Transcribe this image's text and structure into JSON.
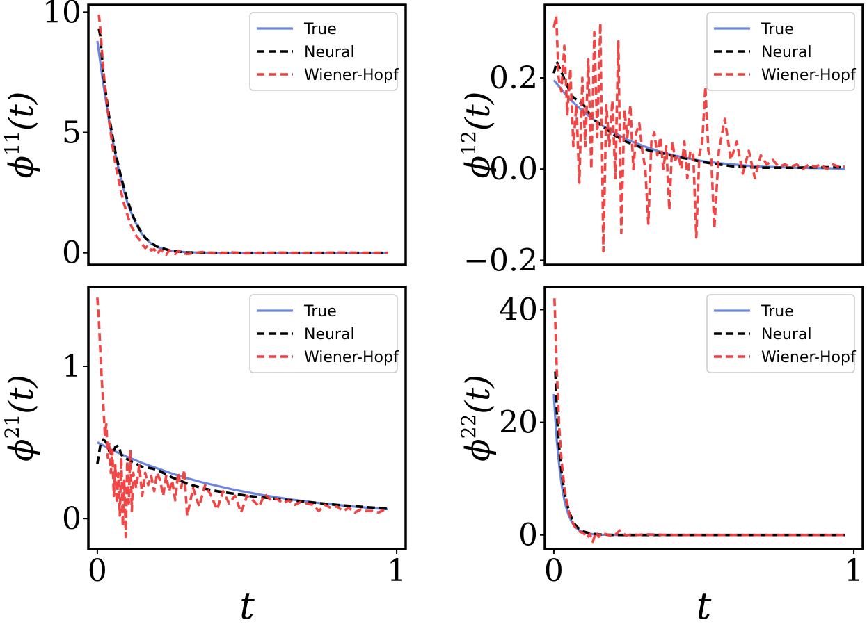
{
  "chart_data": [
    {
      "type": "line",
      "ylabel": {
        "base": "ϕ",
        "sup": "11",
        "arg": "(t)"
      },
      "xlabel": "",
      "xlim": [
        -0.03,
        1.03
      ],
      "ylim": [
        -0.5,
        10.3
      ],
      "xticks": [],
      "xtick_labels": [],
      "yticks": [
        0,
        5,
        10
      ],
      "ytick_labels": [
        "0",
        "5",
        "10"
      ],
      "legend_position": "top-right",
      "legend": [
        "True",
        "Neural",
        "Wiener-Hopf"
      ],
      "colors": {
        "True": "#6a86e0",
        "Neural": "#000000",
        "Wiener-Hopf": "#f03c3c"
      },
      "series": [
        {
          "name": "True",
          "x": [
            0.0,
            0.02,
            0.04,
            0.06,
            0.08,
            0.1,
            0.12,
            0.14,
            0.16,
            0.18,
            0.2,
            0.25,
            0.3,
            0.4,
            0.5,
            0.6,
            0.8,
            0.97
          ],
          "y": [
            8.8,
            7.0,
            5.4,
            4.1,
            3.0,
            2.1,
            1.45,
            0.95,
            0.6,
            0.38,
            0.24,
            0.08,
            0.02,
            0.0,
            0.0,
            0.0,
            0.0,
            0.0
          ]
        },
        {
          "name": "Neural",
          "x": [
            0.005,
            0.01,
            0.02,
            0.04,
            0.06,
            0.08,
            0.1,
            0.12,
            0.14,
            0.16,
            0.18,
            0.2,
            0.25,
            0.3,
            0.4,
            0.5,
            0.6,
            0.8,
            0.97
          ],
          "y": [
            9.3,
            9.0,
            7.4,
            5.6,
            4.2,
            3.1,
            2.2,
            1.5,
            1.0,
            0.62,
            0.4,
            0.25,
            0.07,
            0.02,
            0.0,
            0.0,
            0.0,
            0.0,
            0.0
          ]
        },
        {
          "name": "Wiener-Hopf",
          "x": [
            0.005,
            0.01,
            0.02,
            0.03,
            0.04,
            0.05,
            0.06,
            0.07,
            0.08,
            0.09,
            0.1,
            0.11,
            0.12,
            0.13,
            0.14,
            0.15,
            0.16,
            0.17,
            0.18,
            0.19,
            0.2,
            0.21,
            0.22,
            0.23,
            0.24,
            0.25,
            0.26,
            0.27,
            0.28,
            0.3,
            0.35,
            0.4,
            0.45,
            0.5,
            0.6,
            0.7,
            0.8,
            0.9,
            0.97
          ],
          "y": [
            9.9,
            9.3,
            7.6,
            6.4,
            5.4,
            4.5,
            3.7,
            3.1,
            2.5,
            2.0,
            1.6,
            1.2,
            0.95,
            0.7,
            0.55,
            0.35,
            0.2,
            0.3,
            0.1,
            0.15,
            -0.05,
            0.12,
            0.05,
            -0.08,
            0.1,
            0.02,
            -0.05,
            0.08,
            0.0,
            -0.05,
            0.03,
            -0.03,
            0.02,
            -0.02,
            0.01,
            -0.01,
            0.01,
            0.0,
            0.0
          ]
        }
      ]
    },
    {
      "type": "line",
      "ylabel": {
        "base": "ϕ",
        "sup": "12",
        "arg": "(t)"
      },
      "xlabel": "",
      "xlim": [
        -0.03,
        1.03
      ],
      "ylim": [
        -0.21,
        0.36
      ],
      "xticks": [],
      "xtick_labels": [],
      "yticks": [
        -0.2,
        0.0,
        0.2
      ],
      "ytick_labels": [
        "−0.2",
        "0.0",
        "0.2"
      ],
      "legend_position": "top-right",
      "legend": [
        "True",
        "Neural",
        "Wiener-Hopf"
      ],
      "colors": {
        "True": "#6a86e0",
        "Neural": "#000000",
        "Wiener-Hopf": "#f03c3c"
      },
      "series": [
        {
          "name": "True",
          "x": [
            0.0,
            0.05,
            0.1,
            0.15,
            0.2,
            0.25,
            0.3,
            0.35,
            0.4,
            0.45,
            0.5,
            0.55,
            0.6,
            0.65,
            0.7,
            0.8,
            0.9,
            0.97
          ],
          "y": [
            0.195,
            0.155,
            0.125,
            0.1,
            0.08,
            0.063,
            0.05,
            0.039,
            0.03,
            0.023,
            0.017,
            0.013,
            0.01,
            0.007,
            0.005,
            0.003,
            0.002,
            0.001
          ]
        },
        {
          "name": "Neural",
          "x": [
            0.0,
            0.01,
            0.02,
            0.04,
            0.06,
            0.08,
            0.1,
            0.12,
            0.14,
            0.16,
            0.18,
            0.2,
            0.24,
            0.28,
            0.32,
            0.36,
            0.4,
            0.45,
            0.5,
            0.55,
            0.6,
            0.65,
            0.7,
            0.8,
            0.9,
            0.97
          ],
          "y": [
            0.21,
            0.235,
            0.22,
            0.19,
            0.16,
            0.15,
            0.14,
            0.12,
            0.105,
            0.095,
            0.085,
            0.075,
            0.06,
            0.05,
            0.04,
            0.035,
            0.028,
            0.022,
            0.015,
            0.01,
            0.006,
            0.004,
            0.003,
            0.003,
            0.004,
            0.004
          ]
        },
        {
          "name": "Wiener-Hopf",
          "x": [
            0.0,
            0.008,
            0.016,
            0.025,
            0.035,
            0.045,
            0.055,
            0.065,
            0.075,
            0.085,
            0.095,
            0.105,
            0.115,
            0.125,
            0.135,
            0.145,
            0.155,
            0.165,
            0.175,
            0.185,
            0.195,
            0.205,
            0.215,
            0.225,
            0.235,
            0.245,
            0.255,
            0.265,
            0.275,
            0.285,
            0.295,
            0.305,
            0.315,
            0.325,
            0.335,
            0.345,
            0.355,
            0.365,
            0.375,
            0.385,
            0.395,
            0.405,
            0.415,
            0.425,
            0.435,
            0.445,
            0.455,
            0.465,
            0.475,
            0.485,
            0.495,
            0.505,
            0.515,
            0.525,
            0.535,
            0.55,
            0.57,
            0.59,
            0.61,
            0.63,
            0.65,
            0.67,
            0.69,
            0.71,
            0.73,
            0.75,
            0.77,
            0.79,
            0.81,
            0.83,
            0.85,
            0.87,
            0.89,
            0.91,
            0.93,
            0.95,
            0.97
          ],
          "y": [
            0.31,
            0.335,
            0.2,
            0.17,
            0.27,
            0.12,
            0.22,
            0.05,
            0.14,
            -0.03,
            0.2,
            0.05,
            0.24,
            0.0,
            0.3,
            0.07,
            0.32,
            -0.18,
            0.14,
            0.05,
            0.15,
            -0.02,
            0.28,
            -0.14,
            0.13,
            0.07,
            0.14,
            0.0,
            0.08,
            0.1,
            0.04,
            0.0,
            -0.12,
            0.06,
            0.08,
            0.03,
            0.07,
            0.0,
            0.05,
            -0.09,
            0.06,
            0.02,
            0.03,
            0.0,
            0.06,
            -0.02,
            0.04,
            0.03,
            -0.15,
            0.03,
            0.06,
            0.18,
            0.04,
            0.02,
            -0.13,
            0.04,
            0.11,
            0.02,
            0.06,
            -0.01,
            0.04,
            -0.02,
            0.03,
            0.01,
            0.02,
            0.005,
            0.01,
            0.005,
            0.01,
            0.0,
            0.01,
            0.005,
            0.01,
            0.0,
            0.01,
            0.005,
            0.005
          ]
        }
      ]
    },
    {
      "type": "line",
      "ylabel": {
        "base": "ϕ",
        "sup": "21",
        "arg": "(t)"
      },
      "xlabel": "t",
      "xlim": [
        -0.03,
        1.03
      ],
      "ylim": [
        -0.2,
        1.52
      ],
      "xticks": [
        0,
        1
      ],
      "xtick_labels": [
        "0",
        "1"
      ],
      "yticks": [
        0,
        1
      ],
      "ytick_labels": [
        "0",
        "1"
      ],
      "legend_position": "top-right",
      "legend": [
        "True",
        "Neural",
        "Wiener-Hopf"
      ],
      "colors": {
        "True": "#6a86e0",
        "Neural": "#000000",
        "Wiener-Hopf": "#f03c3c"
      },
      "series": [
        {
          "name": "True",
          "x": [
            0.0,
            0.05,
            0.1,
            0.15,
            0.2,
            0.25,
            0.3,
            0.35,
            0.4,
            0.45,
            0.5,
            0.55,
            0.6,
            0.65,
            0.7,
            0.75,
            0.8,
            0.85,
            0.9,
            0.97
          ],
          "y": [
            0.5,
            0.45,
            0.405,
            0.365,
            0.33,
            0.295,
            0.265,
            0.238,
            0.215,
            0.193,
            0.173,
            0.155,
            0.14,
            0.125,
            0.112,
            0.1,
            0.09,
            0.08,
            0.072,
            0.062
          ]
        },
        {
          "name": "Neural",
          "x": [
            0.0,
            0.01,
            0.02,
            0.03,
            0.04,
            0.05,
            0.06,
            0.07,
            0.08,
            0.09,
            0.1,
            0.12,
            0.15,
            0.18,
            0.2,
            0.22,
            0.25,
            0.3,
            0.35,
            0.4,
            0.5,
            0.6,
            0.7,
            0.8,
            0.9,
            0.97
          ],
          "y": [
            0.36,
            0.48,
            0.52,
            0.5,
            0.44,
            0.42,
            0.47,
            0.48,
            0.42,
            0.4,
            0.39,
            0.37,
            0.34,
            0.33,
            0.32,
            0.3,
            0.27,
            0.23,
            0.2,
            0.18,
            0.15,
            0.13,
            0.11,
            0.09,
            0.075,
            0.065
          ]
        },
        {
          "name": "Wiener-Hopf",
          "x": [
            0.0,
            0.005,
            0.01,
            0.015,
            0.02,
            0.025,
            0.03,
            0.035,
            0.04,
            0.045,
            0.05,
            0.055,
            0.06,
            0.065,
            0.07,
            0.075,
            0.08,
            0.085,
            0.09,
            0.095,
            0.1,
            0.105,
            0.11,
            0.115,
            0.12,
            0.13,
            0.14,
            0.15,
            0.16,
            0.17,
            0.18,
            0.19,
            0.2,
            0.21,
            0.22,
            0.23,
            0.24,
            0.25,
            0.26,
            0.27,
            0.28,
            0.29,
            0.3,
            0.32,
            0.34,
            0.36,
            0.38,
            0.4,
            0.42,
            0.44,
            0.46,
            0.48,
            0.5,
            0.52,
            0.54,
            0.56,
            0.58,
            0.6,
            0.62,
            0.64,
            0.66,
            0.68,
            0.7,
            0.72,
            0.74,
            0.76,
            0.78,
            0.8,
            0.82,
            0.84,
            0.86,
            0.88,
            0.9,
            0.92,
            0.94,
            0.97
          ],
          "y": [
            1.45,
            1.3,
            1.1,
            0.9,
            0.75,
            0.55,
            0.62,
            0.4,
            0.5,
            0.3,
            0.45,
            0.15,
            0.35,
            0.1,
            0.3,
            0.02,
            0.4,
            -0.05,
            0.25,
            -0.12,
            0.38,
            0.1,
            0.45,
            0.05,
            0.3,
            0.2,
            0.35,
            0.15,
            0.3,
            0.22,
            0.28,
            0.18,
            0.3,
            0.25,
            0.15,
            0.28,
            0.18,
            0.25,
            0.12,
            0.3,
            0.2,
            0.32,
            0.02,
            0.2,
            0.08,
            0.22,
            0.15,
            0.06,
            0.18,
            0.1,
            0.15,
            0.04,
            0.15,
            0.12,
            0.08,
            0.16,
            0.12,
            0.13,
            0.1,
            0.12,
            0.09,
            0.11,
            0.1,
            0.09,
            0.05,
            0.09,
            0.07,
            0.08,
            0.05,
            0.07,
            0.04,
            0.06,
            0.05,
            0.05,
            0.04,
            0.07
          ]
        }
      ]
    },
    {
      "type": "line",
      "ylabel": {
        "base": "ϕ",
        "sup": "22",
        "arg": "(t)"
      },
      "xlabel": "t",
      "xlim": [
        -0.03,
        1.03
      ],
      "ylim": [
        -2.5,
        44.0
      ],
      "xticks": [
        0,
        1
      ],
      "xtick_labels": [
        "0",
        "1"
      ],
      "yticks": [
        0,
        20,
        40
      ],
      "ytick_labels": [
        "0",
        "20",
        "40"
      ],
      "legend_position": "top-right",
      "legend": [
        "True",
        "Neural",
        "Wiener-Hopf"
      ],
      "colors": {
        "True": "#6a86e0",
        "Neural": "#000000",
        "Wiener-Hopf": "#f03c3c"
      },
      "series": [
        {
          "name": "True",
          "x": [
            0.0,
            0.005,
            0.01,
            0.015,
            0.02,
            0.025,
            0.03,
            0.035,
            0.04,
            0.05,
            0.06,
            0.07,
            0.08,
            0.09,
            0.1,
            0.12,
            0.15,
            0.2,
            0.3,
            0.5,
            0.7,
            0.97
          ],
          "y": [
            25.0,
            20.5,
            16.8,
            13.8,
            11.3,
            9.3,
            7.6,
            6.2,
            5.1,
            3.4,
            2.3,
            1.5,
            1.0,
            0.7,
            0.45,
            0.2,
            0.05,
            0.0,
            0.0,
            0.0,
            0.0,
            0.0
          ]
        },
        {
          "name": "Neural",
          "x": [
            0.005,
            0.01,
            0.015,
            0.02,
            0.025,
            0.03,
            0.035,
            0.04,
            0.05,
            0.06,
            0.07,
            0.08,
            0.09,
            0.1,
            0.12,
            0.15,
            0.2,
            0.3,
            0.5,
            0.7,
            0.97
          ],
          "y": [
            29.0,
            22.0,
            17.5,
            14.0,
            11.5,
            9.5,
            7.8,
            6.4,
            4.3,
            2.9,
            1.9,
            1.3,
            0.9,
            0.6,
            0.3,
            0.08,
            0.0,
            0.0,
            0.0,
            0.0,
            0.0
          ]
        },
        {
          "name": "Wiener-Hopf",
          "x": [
            0.002,
            0.006,
            0.01,
            0.014,
            0.018,
            0.022,
            0.026,
            0.03,
            0.035,
            0.04,
            0.045,
            0.05,
            0.055,
            0.06,
            0.065,
            0.07,
            0.08,
            0.09,
            0.1,
            0.11,
            0.12,
            0.13,
            0.14,
            0.15,
            0.16,
            0.18,
            0.2,
            0.22,
            0.24,
            0.26,
            0.28,
            0.3,
            0.4,
            0.5,
            0.7,
            0.97
          ],
          "y": [
            42.0,
            36.0,
            29.0,
            24.0,
            19.0,
            16.0,
            13.0,
            11.0,
            8.5,
            6.8,
            5.3,
            4.2,
            3.2,
            2.6,
            1.9,
            1.5,
            0.8,
            0.5,
            0.3,
            -0.5,
            0.2,
            -1.2,
            0.5,
            -0.3,
            0.4,
            0.0,
            -0.2,
            0.8,
            -0.1,
            0.1,
            0.0,
            0.1,
            0.0,
            0.0,
            0.0,
            0.0
          ]
        }
      ]
    }
  ]
}
